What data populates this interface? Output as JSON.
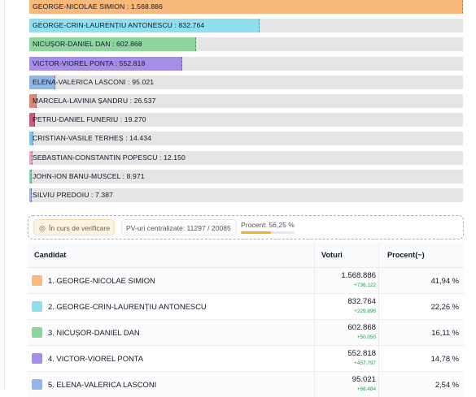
{
  "chart_data": {
    "type": "bar",
    "orientation": "horizontal",
    "categories": [
      "GEORGE-NICOLAE SIMION",
      "GEORGE-CRIN-LAURENȚIU ANTONESCU",
      "NICUȘOR-DANIEL DAN",
      "VICTOR-VIOREL PONTA",
      "ELENA-VALERICA LASCONI",
      "MARCELA-LAVINIA ȘANDRU",
      "PETRU-DANIEL FUNERIU",
      "CRISTIAN-VASILE TERHEȘ",
      "SEBASTIAN-CONSTANTIN POPESCU",
      "JOHN-ION BANU-MUSCEL",
      "SILVIU PREDOIU"
    ],
    "values": [
      1568886,
      832764,
      602868,
      552818,
      95021,
      26537,
      19270,
      14434,
      12150,
      8971,
      7387
    ],
    "labels": [
      "GEORGE-NICOLAE SIMION : 1.568.886",
      "GEORGE-CRIN-LAURENȚIU ANTONESCU : 832.764",
      "NICUȘOR-DANIEL DAN : 602.868",
      "VICTOR-VIOREL PONTA : 552.818",
      "ELENA-VALERICA LASCONI : 95.021",
      "MARCELA-LAVINIA ȘANDRU : 26.537",
      "PETRU-DANIEL FUNERIU : 19.270",
      "CRISTIAN-VASILE TERHEȘ : 14.434",
      "SEBASTIAN-CONSTANTIN POPESCU : 12.150",
      "JOHN-ION BANU-MUSCEL : 8.971",
      "SILVIU PREDOIU : 7.387"
    ],
    "colors": [
      "#f9b97b",
      "#8fe0ee",
      "#8ed6a0",
      "#a68ee8",
      "#8fb8e6",
      "#d98a73",
      "#c85a7b",
      "#7ec4ec",
      "#e6a3c4",
      "#7fd3a8",
      "#9db3e0"
    ],
    "xlim": [
      0,
      1568886
    ]
  },
  "status": {
    "verif_icon": "radar-icon",
    "verif_label": "În curs de verificare",
    "pv_label": "PV-uri centralizate: 11297 / 20085",
    "procent_label": "Procent: 56,25 %",
    "procent_value": 56.25,
    "accent": "#f0b429"
  },
  "table": {
    "headers": {
      "candidat": "Candidat",
      "voturi": "Voturi",
      "procent": "Procent(~)"
    },
    "rows": [
      {
        "name": "1. GEORGE-NICOLAE SIMION",
        "votes": "1.568.886",
        "delta": "+736.122",
        "pct": "41,94 %",
        "color": "#f9b97b"
      },
      {
        "name": "2. GEORGE-CRIN-LAURENȚIU ANTONESCU",
        "votes": "832.764",
        "delta": "+229.896",
        "pct": "22,26 %",
        "color": "#8fe0ee"
      },
      {
        "name": "3. NICUȘOR-DANIEL DAN",
        "votes": "602.868",
        "delta": "+50.050",
        "pct": "16,11 %",
        "color": "#8ed6a0"
      },
      {
        "name": "4. VICTOR-VIOREL PONTA",
        "votes": "552.818",
        "delta": "+457.797",
        "pct": "14,78 %",
        "color": "#a68ee8"
      },
      {
        "name": "5. ELENA-VALERICA LASCONI",
        "votes": "95.021",
        "delta": "+68.484",
        "pct": "2,54 %",
        "color": "#8fb8e6"
      }
    ]
  }
}
